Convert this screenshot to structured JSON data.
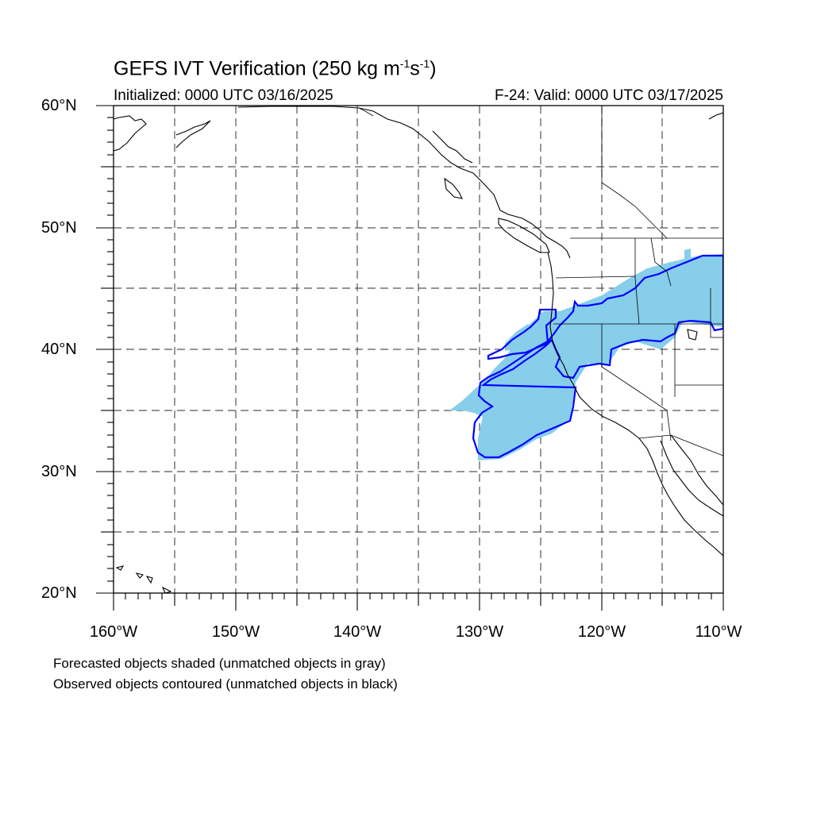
{
  "map": {
    "title": "GEFS IVT Verification (250 kg m",
    "title_units": {
      "exp1": "-1",
      "mid": "s",
      "exp2": "-1",
      "end": ")"
    },
    "initialized": "Initialized: 0000 UTC 03/16/2025",
    "valid": "F-24: Valid: 0000 UTC 03/17/2025",
    "extent": {
      "lon_min": -160,
      "lon_max": -110,
      "lat_min": 20,
      "lat_max": 60
    },
    "lat_labels": [
      "60°N",
      "50°N",
      "40°N",
      "30°N",
      "20°N"
    ],
    "lon_labels": [
      "160°W",
      "150°W",
      "140°W",
      "130°W",
      "120°W",
      "110°W"
    ],
    "footnotes": [
      "Forecasted objects shaded (unmatched objects in gray)",
      "Observed objects contoured (unmatched objects in black)"
    ],
    "colors": {
      "forecast_fill": "#87ceeb",
      "observed_contour": "#0000ff",
      "coast": "#000000",
      "grid": "#555555"
    }
  }
}
